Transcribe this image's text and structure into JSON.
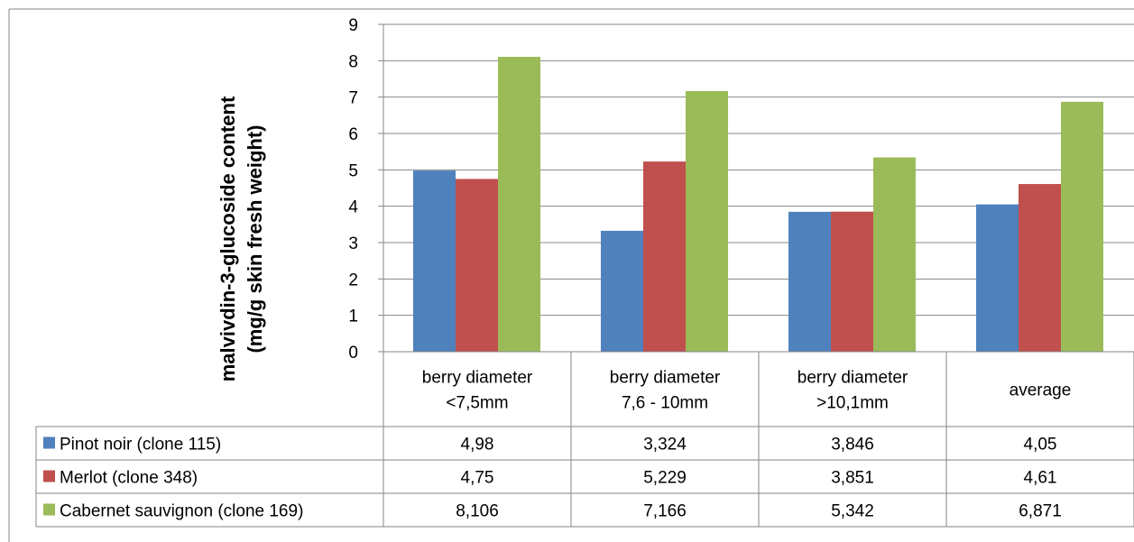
{
  "chart_data": {
    "type": "bar",
    "ylabel_line1": "malvivdin-3-glucoside content",
    "ylabel_line2": "(mg/g skin fresh weight)",
    "ylim": [
      0,
      9
    ],
    "yticks": [
      "0",
      "1",
      "2",
      "3",
      "4",
      "5",
      "6",
      "7",
      "8",
      "9"
    ],
    "grid": true,
    "legend": "data-table",
    "categories": [
      [
        "berry diameter",
        "<7,5mm"
      ],
      [
        "berry diameter",
        "7,6 - 10mm"
      ],
      [
        "berry diameter",
        ">10,1mm"
      ],
      [
        "average"
      ]
    ],
    "series": [
      {
        "name": "Pinot noir (clone 115)",
        "color": "#4f81bd",
        "values": [
          4.98,
          3.324,
          3.846,
          4.05
        ],
        "labels": [
          "4,98",
          "3,324",
          "3,846",
          "4,05"
        ]
      },
      {
        "name": "Merlot (clone 348)",
        "color": "#c0504d",
        "values": [
          4.75,
          5.229,
          3.851,
          4.61
        ],
        "labels": [
          "4,75",
          "5,229",
          "3,851",
          "4,61"
        ]
      },
      {
        "name": "Cabernet sauvignon (clone 169)",
        "color": "#9bbb59",
        "values": [
          8.106,
          7.166,
          5.342,
          6.871
        ],
        "labels": [
          "8,106",
          "7,166",
          "5,342",
          "6,871"
        ]
      }
    ]
  }
}
